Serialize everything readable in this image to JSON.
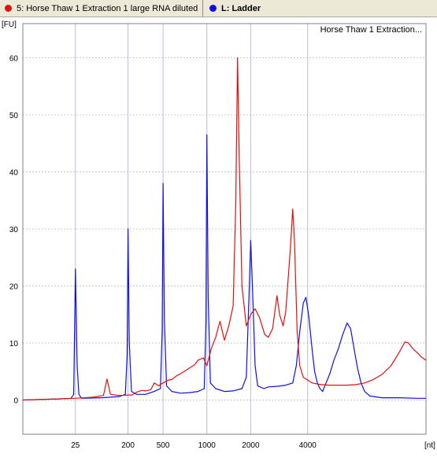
{
  "legend": {
    "sample": {
      "label": "5: Horse Thaw 1 Extraction 1 large RNA diluted",
      "color": "#e01010"
    },
    "ladder": {
      "label": "L: Ladder",
      "color": "#1010e0"
    }
  },
  "chart_data": {
    "type": "line",
    "title": "Horse Thaw 1 Extraction...",
    "ylabel": "[FU]",
    "xlabel": "[nt]",
    "ylim": [
      -6,
      66
    ],
    "yticks": [
      0,
      10,
      20,
      30,
      40,
      50,
      60
    ],
    "xlim": [
      16,
      62
    ],
    "xticks": [
      {
        "label": "25",
        "x": 22
      },
      {
        "label": "200",
        "x": 28
      },
      {
        "label": "500",
        "x": 32
      },
      {
        "label": "1000",
        "x": 37
      },
      {
        "label": "2000",
        "x": 42
      },
      {
        "label": "4000",
        "x": 48.5
      }
    ],
    "x_is_time_seconds": false,
    "grid": true,
    "series": [
      {
        "name": "L: Ladder",
        "color": "#1010e0",
        "points": [
          [
            16,
            0
          ],
          [
            20,
            0.2
          ],
          [
            21.5,
            0.3
          ],
          [
            21.8,
            1
          ],
          [
            22,
            23
          ],
          [
            22.2,
            6
          ],
          [
            22.4,
            1
          ],
          [
            22.7,
            0.3
          ],
          [
            25,
            0.4
          ],
          [
            27,
            0.6
          ],
          [
            27.7,
            1
          ],
          [
            27.9,
            8
          ],
          [
            28,
            30
          ],
          [
            28.15,
            10
          ],
          [
            28.4,
            1.5
          ],
          [
            29,
            1
          ],
          [
            30,
            1
          ],
          [
            31,
            1.5
          ],
          [
            31.7,
            2
          ],
          [
            31.9,
            12
          ],
          [
            32,
            38
          ],
          [
            32.15,
            14
          ],
          [
            32.4,
            2.5
          ],
          [
            33,
            1.5
          ],
          [
            34,
            1.2
          ],
          [
            35,
            1.3
          ],
          [
            36,
            1.5
          ],
          [
            36.7,
            2
          ],
          [
            36.9,
            14
          ],
          [
            37,
            46.5
          ],
          [
            37.15,
            18
          ],
          [
            37.4,
            3
          ],
          [
            38,
            2
          ],
          [
            39,
            1.5
          ],
          [
            40,
            1.6
          ],
          [
            41,
            2
          ],
          [
            41.5,
            4
          ],
          [
            41.8,
            18
          ],
          [
            42,
            28
          ],
          [
            42.2,
            20
          ],
          [
            42.5,
            6
          ],
          [
            42.8,
            2.5
          ],
          [
            43.5,
            2
          ],
          [
            44,
            2.3
          ],
          [
            45,
            2.4
          ],
          [
            46,
            2.6
          ],
          [
            46.8,
            3
          ],
          [
            47.2,
            6
          ],
          [
            47.6,
            12
          ],
          [
            48,
            17
          ],
          [
            48.3,
            18
          ],
          [
            48.6,
            15
          ],
          [
            49,
            9
          ],
          [
            49.3,
            5
          ],
          [
            49.6,
            3
          ],
          [
            49.9,
            2
          ],
          [
            50.2,
            1.5
          ],
          [
            50.6,
            3
          ],
          [
            51,
            4.5
          ],
          [
            51.5,
            7
          ],
          [
            52,
            9
          ],
          [
            52.5,
            11.5
          ],
          [
            53,
            13.5
          ],
          [
            53.4,
            12.5
          ],
          [
            53.8,
            9
          ],
          [
            54.2,
            5.5
          ],
          [
            54.6,
            3
          ],
          [
            55,
            1.5
          ],
          [
            55.6,
            0.7
          ],
          [
            57,
            0.4
          ],
          [
            59,
            0.4
          ],
          [
            61,
            0.3
          ],
          [
            62,
            0.3
          ]
        ]
      },
      {
        "name": "5: Horse Thaw 1 Extraction 1 large RNA diluted",
        "color": "#e01010",
        "points": [
          [
            16,
            0
          ],
          [
            20,
            0.2
          ],
          [
            22,
            0.3
          ],
          [
            24,
            0.5
          ],
          [
            25.2,
            0.8
          ],
          [
            25.6,
            3.7
          ],
          [
            26,
            1
          ],
          [
            27,
            0.8
          ],
          [
            28.5,
            0.9
          ],
          [
            29,
            1.4
          ],
          [
            29.6,
            1.7
          ],
          [
            30,
            1.6
          ],
          [
            30.6,
            1.8
          ],
          [
            31,
            3
          ],
          [
            31.5,
            2.5
          ],
          [
            32,
            3
          ],
          [
            32.6,
            3.5
          ],
          [
            33,
            3.6
          ],
          [
            33.6,
            4.3
          ],
          [
            34,
            4.6
          ],
          [
            34.6,
            5.2
          ],
          [
            35,
            5.6
          ],
          [
            35.6,
            6.2
          ],
          [
            36,
            7
          ],
          [
            36.6,
            7.4
          ],
          [
            37,
            6
          ],
          [
            37.5,
            9
          ],
          [
            38,
            11
          ],
          [
            38.5,
            13.8
          ],
          [
            39,
            10.5
          ],
          [
            39.5,
            13
          ],
          [
            40,
            16.5
          ],
          [
            40.3,
            35
          ],
          [
            40.5,
            60
          ],
          [
            40.7,
            42
          ],
          [
            41,
            20
          ],
          [
            41.5,
            13
          ],
          [
            42,
            15
          ],
          [
            42.5,
            16
          ],
          [
            43,
            14.5
          ],
          [
            43.6,
            11.5
          ],
          [
            44,
            11
          ],
          [
            44.5,
            12.5
          ],
          [
            45,
            18.3
          ],
          [
            45.3,
            15
          ],
          [
            45.7,
            13
          ],
          [
            46,
            15.5
          ],
          [
            46.5,
            26
          ],
          [
            46.8,
            33.5
          ],
          [
            47,
            28
          ],
          [
            47.3,
            12
          ],
          [
            47.6,
            6
          ],
          [
            48,
            4
          ],
          [
            49,
            3
          ],
          [
            50,
            2.7
          ],
          [
            51,
            2.6
          ],
          [
            52,
            2.6
          ],
          [
            53,
            2.6
          ],
          [
            54,
            2.7
          ],
          [
            55,
            3
          ],
          [
            56,
            3.6
          ],
          [
            57,
            4.5
          ],
          [
            58,
            6
          ],
          [
            59,
            8.5
          ],
          [
            59.6,
            10.2
          ],
          [
            60,
            10
          ],
          [
            60.5,
            9
          ],
          [
            61,
            8.3
          ],
          [
            61.5,
            7.5
          ],
          [
            62,
            7
          ]
        ]
      }
    ]
  }
}
